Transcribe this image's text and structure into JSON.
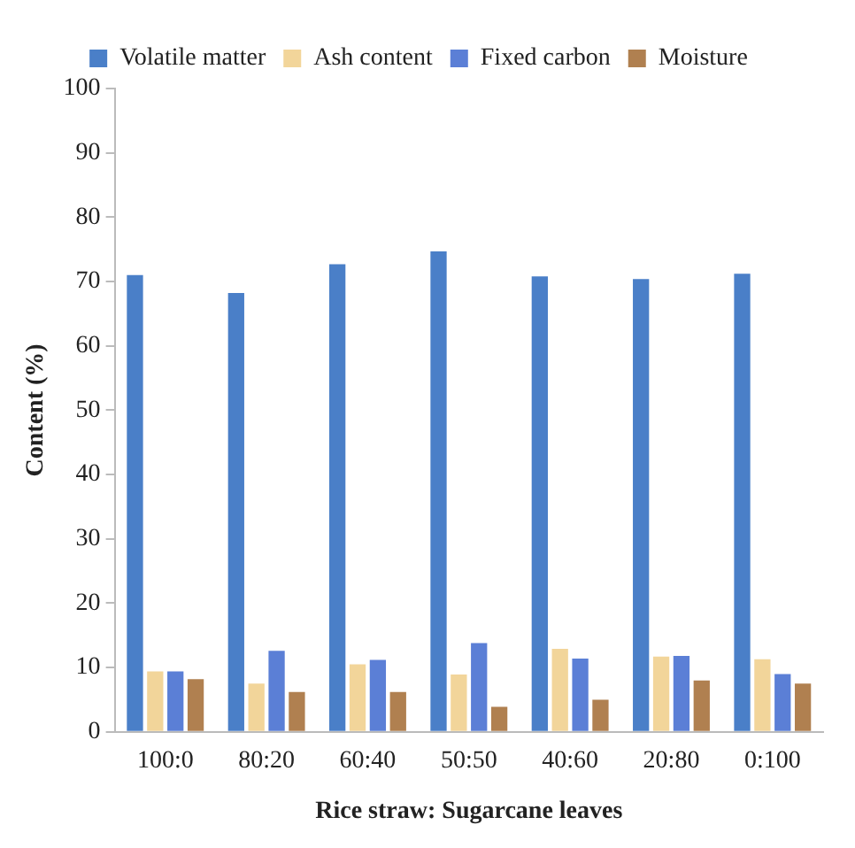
{
  "chart_data": {
    "type": "bar",
    "xlabel": "Rice straw: Sugarcane leaves",
    "ylabel": "Content (%)",
    "categories": [
      "100:0",
      "80:20",
      "60:40",
      "50:50",
      "40:60",
      "20:80",
      "0:100"
    ],
    "series": [
      {
        "name": "Volatile matter",
        "color": "#4a7fc8",
        "values": [
          71,
          68.2,
          72.7,
          74.7,
          70.8,
          70.4,
          71.2
        ]
      },
      {
        "name": "Ash content",
        "color": "#f2d59a",
        "values": [
          9.4,
          7.5,
          10.5,
          8.9,
          12.9,
          11.7,
          11.3
        ]
      },
      {
        "name": "Fixed carbon",
        "color": "#5b7fd6",
        "values": [
          9.4,
          12.6,
          11.2,
          13.8,
          11.4,
          11.8,
          9.0
        ]
      },
      {
        "name": "Moisture",
        "color": "#b08050",
        "values": [
          8.2,
          6.2,
          6.2,
          3.9,
          5.0,
          8.0,
          7.5
        ]
      }
    ],
    "ylim": [
      0,
      100
    ],
    "yticks": [
      0,
      10,
      20,
      30,
      40,
      50,
      60,
      70,
      80,
      90,
      100
    ],
    "grid": false,
    "legend": "top"
  }
}
